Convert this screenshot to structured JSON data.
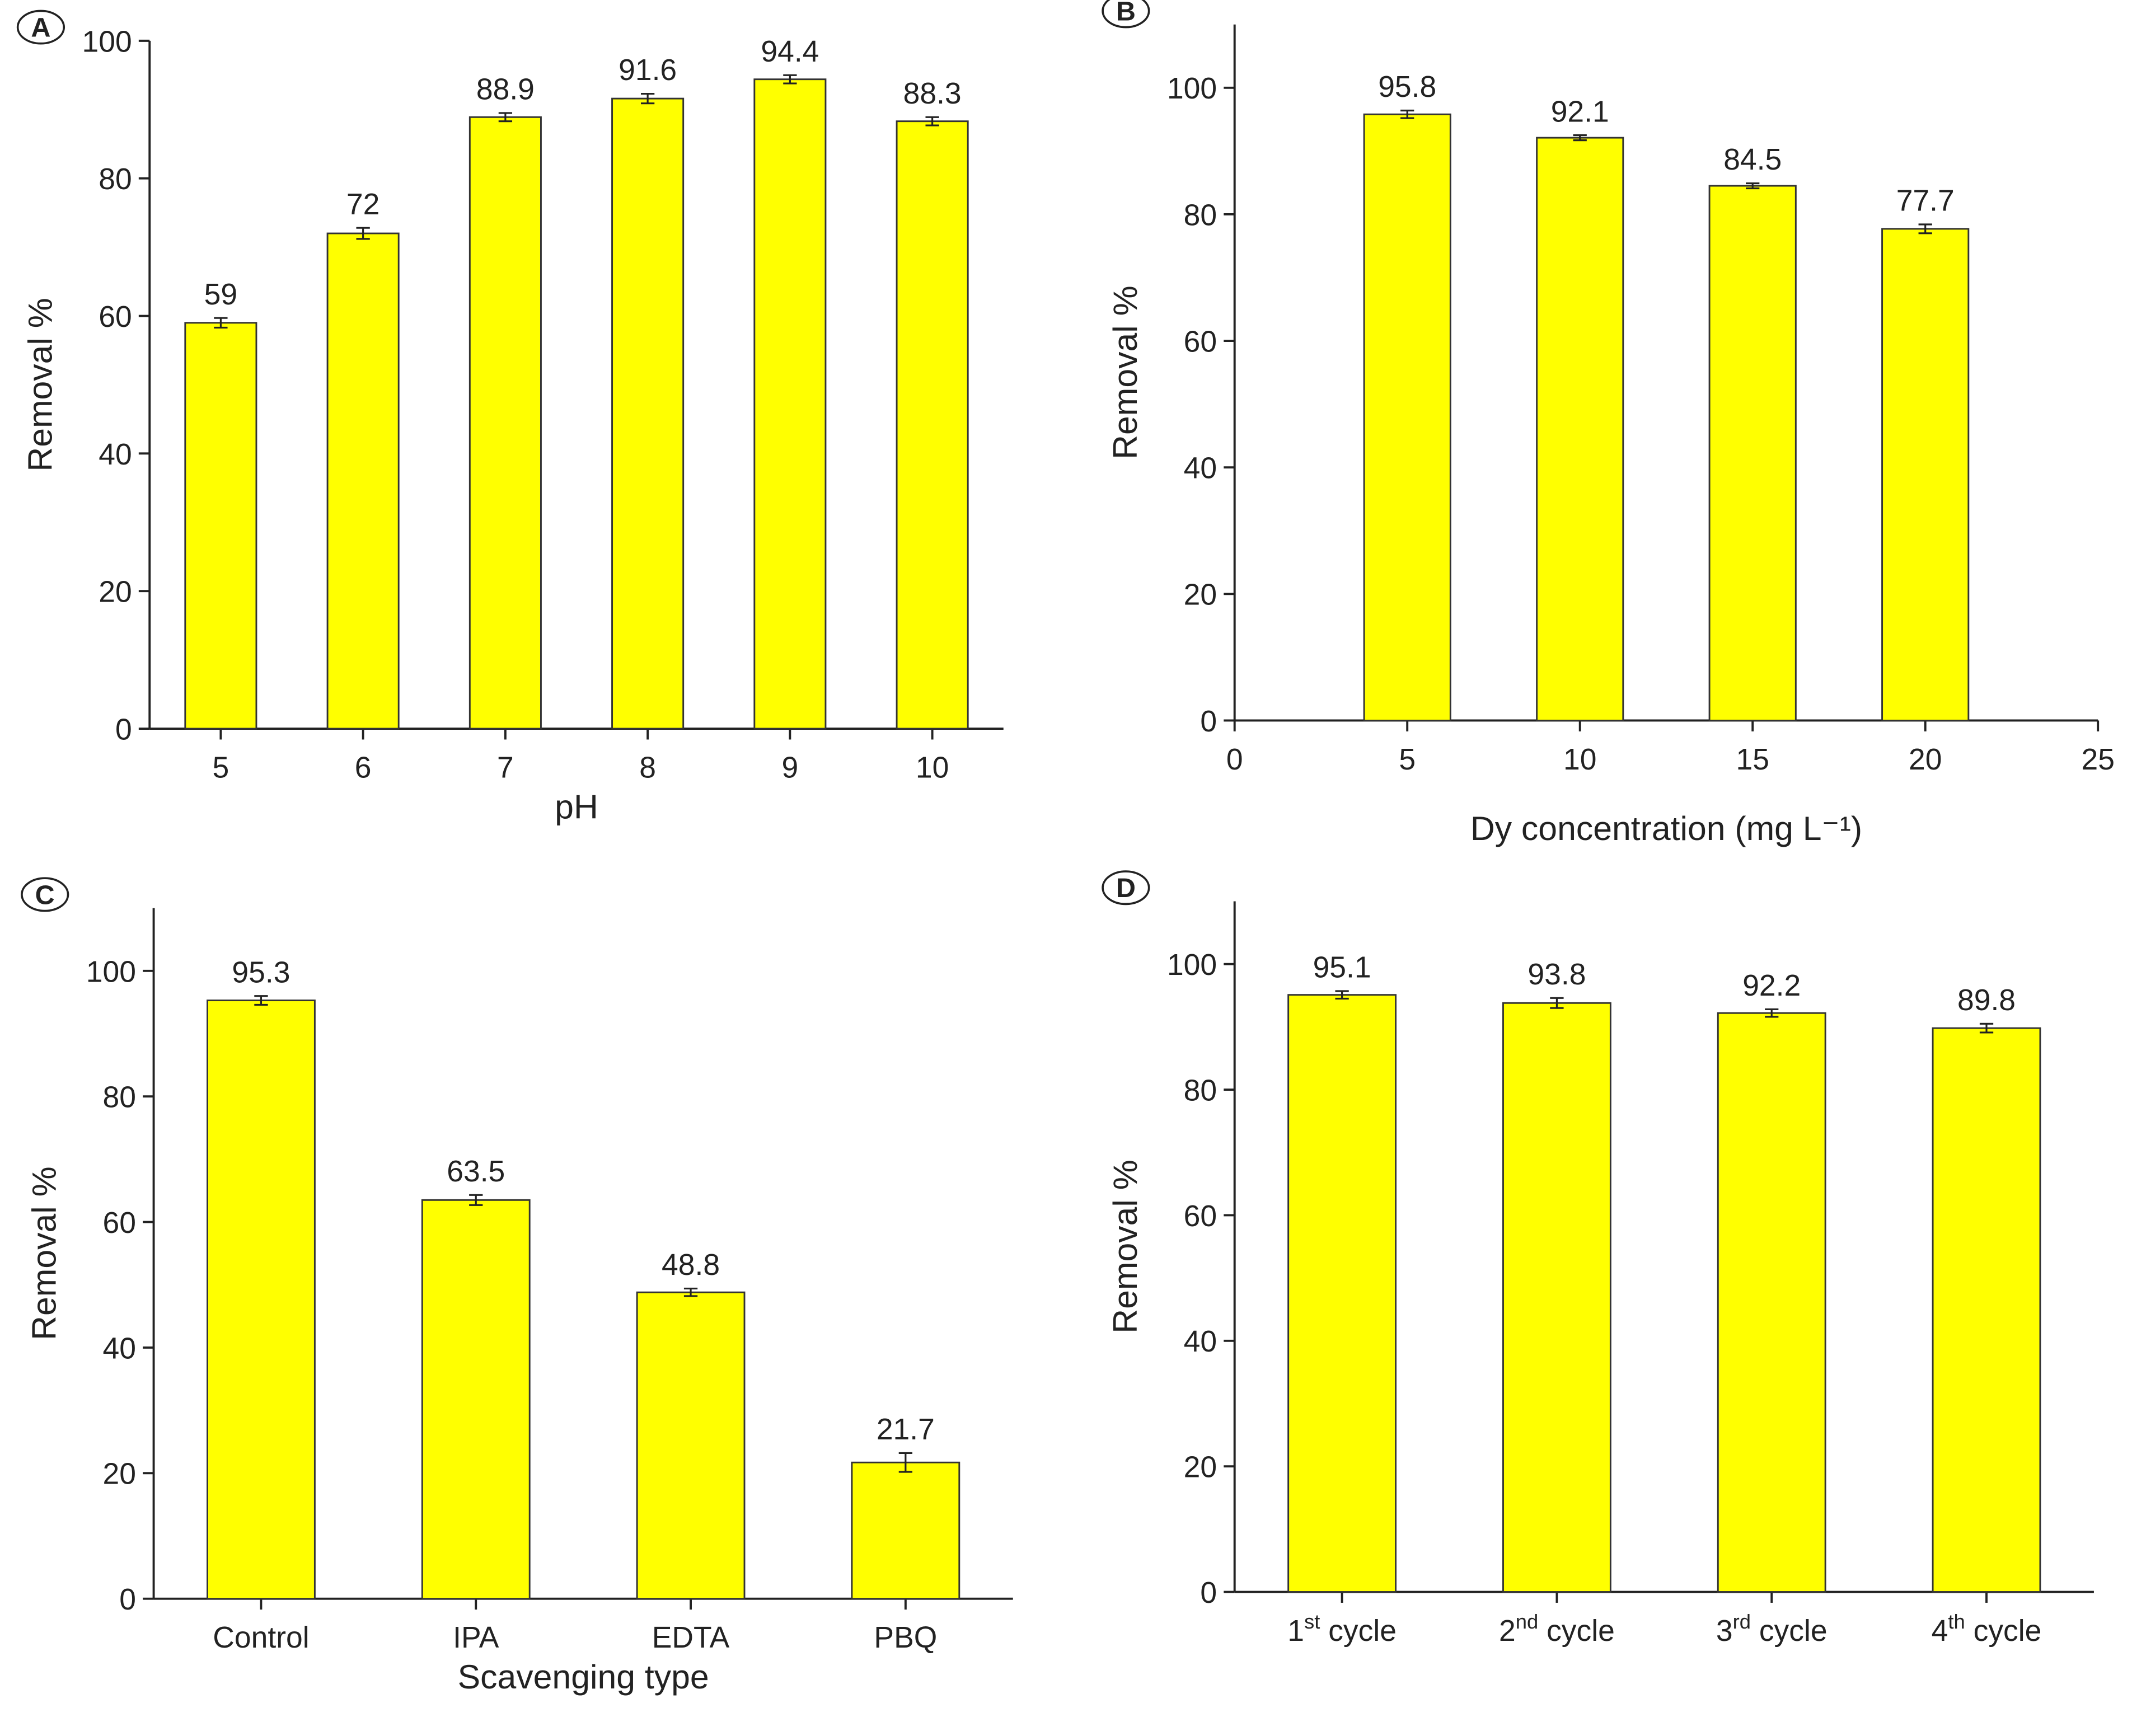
{
  "chart_data": [
    {
      "type": "bar",
      "panel": "A",
      "xlabel": "pH",
      "ylabel": "Removal %",
      "categories": [
        "5",
        "6",
        "7",
        "8",
        "9",
        "10"
      ],
      "values": [
        59,
        72,
        88.9,
        91.6,
        94.4,
        88.3
      ],
      "errors": [
        0.7,
        0.8,
        0.6,
        0.7,
        0.6,
        0.6
      ],
      "color": "#ffff00",
      "ylim": [
        0,
        100
      ],
      "yticks": [
        0,
        20,
        40,
        60,
        80,
        100
      ]
    },
    {
      "type": "bar_numeric",
      "panel": "B",
      "xlabel": "Dy concentration (mg L⁻¹)",
      "ylabel": "Removal %",
      "x": [
        5,
        10,
        15,
        20
      ],
      "values": [
        95.8,
        92.1,
        84.5,
        77.7
      ],
      "errors": [
        0.6,
        0.4,
        0.4,
        0.7
      ],
      "color": "#ffff00",
      "xlim": [
        0,
        25
      ],
      "xticks": [
        0,
        5,
        10,
        15,
        20,
        25
      ],
      "ylim": [
        0,
        110
      ],
      "yticks": [
        0,
        20,
        40,
        60,
        80,
        100
      ]
    },
    {
      "type": "bar",
      "panel": "C",
      "xlabel": "Scavenging type",
      "ylabel": "Removal %",
      "categories": [
        "Control",
        "IPA",
        "EDTA",
        "PBQ"
      ],
      "values": [
        95.3,
        63.5,
        48.8,
        21.7
      ],
      "errors": [
        0.7,
        0.8,
        0.6,
        1.5
      ],
      "color": "#ffff00",
      "ylim": [
        0,
        110
      ],
      "yticks": [
        0,
        20,
        40,
        60,
        80,
        100
      ]
    },
    {
      "type": "bar",
      "panel": "D",
      "ylabel": "Removal %",
      "categories": [
        "1st cycle",
        "2nd cycle",
        "3rd cycle",
        "4th cycle"
      ],
      "values": [
        95.1,
        93.8,
        92.2,
        89.8
      ],
      "errors": [
        0.6,
        0.8,
        0.6,
        0.7
      ],
      "color": "#ffff00",
      "ylim": [
        0,
        110
      ],
      "yticks": [
        0,
        20,
        40,
        60,
        80,
        100
      ]
    }
  ]
}
